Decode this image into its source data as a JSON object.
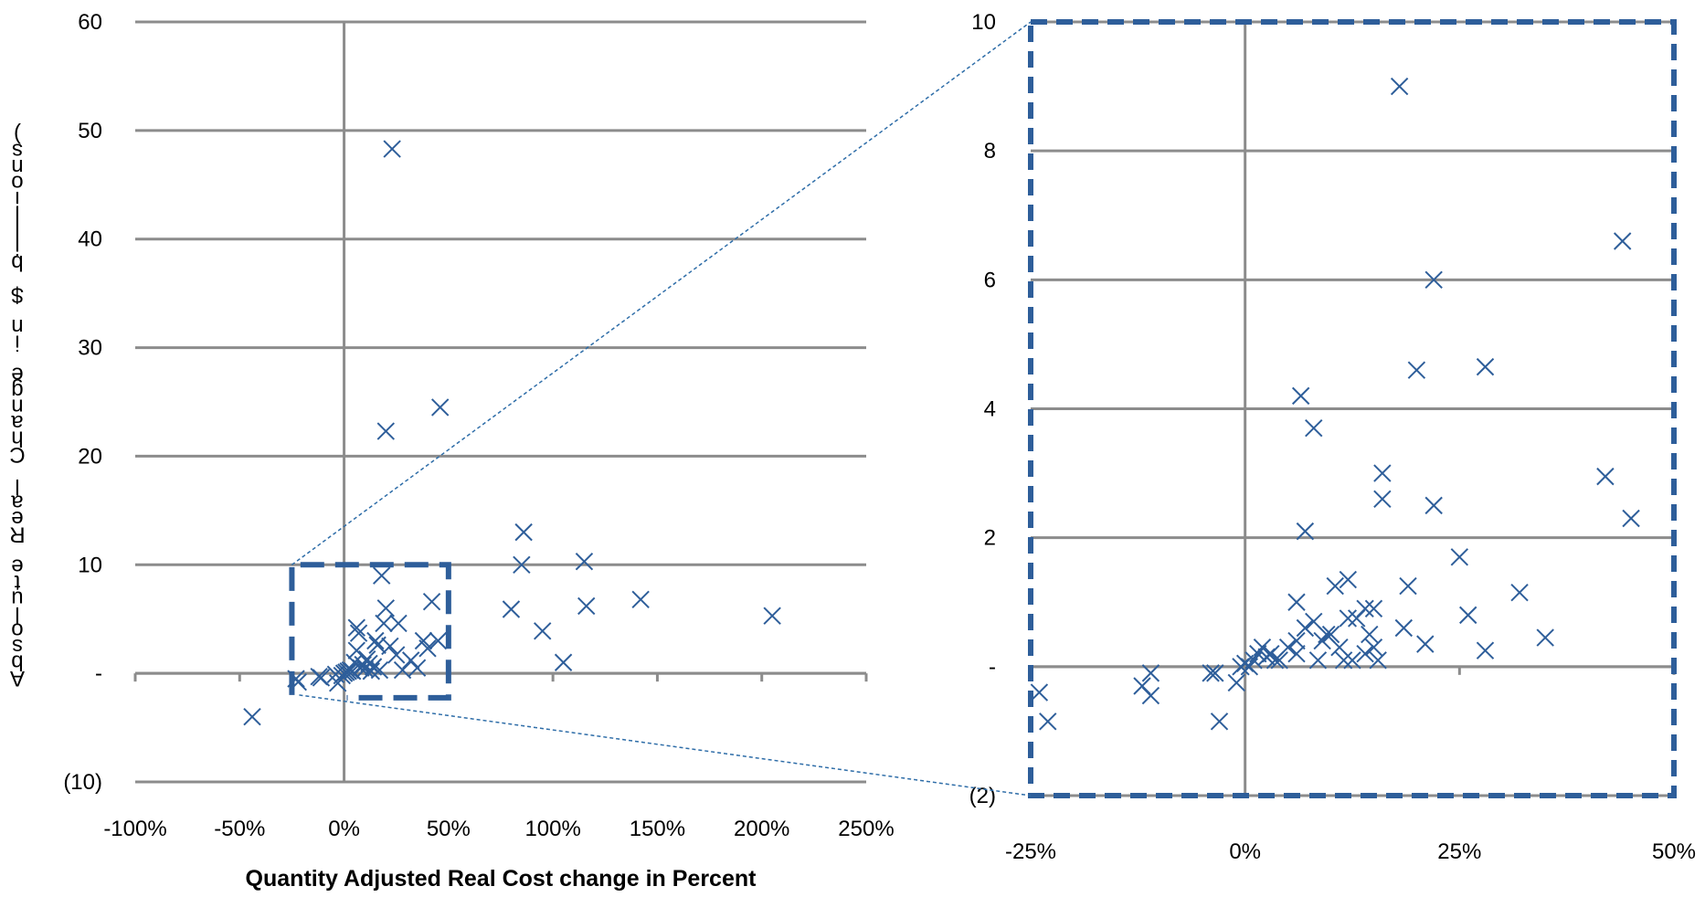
{
  "chart_data": [
    {
      "type": "scatter",
      "title": "",
      "xlabel": "Quantity Adjusted Real Cost change in Percent",
      "ylabel": "Absolute Real Change in $ billions)",
      "xlim": [
        -100,
        250
      ],
      "ylim": [
        -10,
        60
      ],
      "x_ticks": [
        "-100%",
        "-50%",
        "0%",
        "50%",
        "100%",
        "150%",
        "200%",
        "250%"
      ],
      "y_ticks": [
        "(10)",
        "-",
        "10",
        "20",
        "30",
        "40",
        "50",
        "60"
      ],
      "grid": "horizontal",
      "marker": "x",
      "color": "#2e5e9a",
      "series": [
        {
          "x": [
            -44,
            -23,
            -22,
            -12,
            -11,
            -4,
            -3,
            -1,
            0,
            1,
            2,
            3,
            4,
            5,
            6,
            6,
            7,
            8,
            9,
            10,
            11,
            12,
            13,
            14,
            15,
            16,
            17,
            18,
            19,
            20,
            22,
            25,
            26,
            28,
            32,
            35,
            38,
            40,
            42,
            45,
            23,
            20,
            46,
            80,
            86,
            85,
            95,
            105,
            115,
            116,
            142,
            205
          ],
          "y": [
            -4,
            -0.5,
            -0.8,
            -0.3,
            -0.4,
            -0.1,
            -0.9,
            -0.2,
            0,
            0.1,
            0.2,
            0.3,
            0.2,
            1.0,
            4.2,
            2.1,
            3.7,
            0.5,
            0.8,
            0.4,
            1.3,
            0.9,
            0.2,
            0.6,
            3.0,
            2.6,
            0.3,
            9.0,
            4.6,
            6.0,
            2.5,
            1.7,
            4.6,
            0.3,
            1.2,
            0.5,
            3.0,
            2.3,
            6.6,
            3.0,
            48.3,
            22.3,
            24.5,
            5.9,
            13.0,
            10.0,
            3.9,
            1.0,
            10.3,
            6.2,
            6.8,
            5.3
          ]
        }
      ]
    },
    {
      "type": "scatter",
      "title": "",
      "xlabel": "",
      "ylabel": "",
      "xlim": [
        -25,
        50
      ],
      "ylim": [
        -2,
        10
      ],
      "x_ticks": [
        "-25%",
        "0%",
        "25%",
        "50%"
      ],
      "y_ticks": [
        "(2)",
        "-",
        "2",
        "4",
        "6",
        "8",
        "10"
      ],
      "grid": "horizontal",
      "marker": "x",
      "color": "#2e5e9a",
      "series": [
        {
          "x": [
            -24,
            -23,
            -12,
            -11,
            -11,
            -4,
            -3.5,
            -3,
            -1,
            -0.5,
            0,
            0.5,
            1,
            1.5,
            2,
            2.5,
            3,
            3.5,
            4,
            5,
            6,
            6,
            6,
            6.5,
            7,
            7,
            8,
            8,
            8.5,
            9,
            9.5,
            10,
            10.5,
            11,
            11.5,
            12,
            12,
            12.5,
            13,
            14,
            14,
            14.5,
            15,
            15,
            15.5,
            16,
            16,
            18,
            18.5,
            19,
            20,
            21,
            22,
            22,
            25,
            26,
            28,
            28,
            32,
            35,
            42,
            44,
            45
          ],
          "y": [
            -0.4,
            -0.85,
            -0.3,
            -0.1,
            -0.45,
            -0.1,
            -0.1,
            -0.85,
            -0.25,
            0.0,
            0.05,
            0.0,
            0.1,
            0.2,
            0.3,
            0.15,
            0.2,
            0.1,
            0.1,
            0.3,
            1.0,
            0.4,
            0.2,
            4.2,
            2.1,
            0.6,
            0.7,
            3.7,
            0.1,
            0.4,
            0.5,
            0.5,
            1.25,
            0.3,
            0.1,
            1.35,
            0.75,
            0.1,
            0.75,
            0.2,
            0.9,
            0.5,
            0.9,
            0.3,
            0.1,
            3.0,
            2.6,
            9.0,
            0.6,
            1.25,
            4.6,
            0.35,
            6.0,
            2.5,
            1.7,
            0.8,
            4.65,
            0.25,
            1.15,
            0.45,
            2.95,
            6.6,
            2.3
          ]
        }
      ]
    }
  ]
}
